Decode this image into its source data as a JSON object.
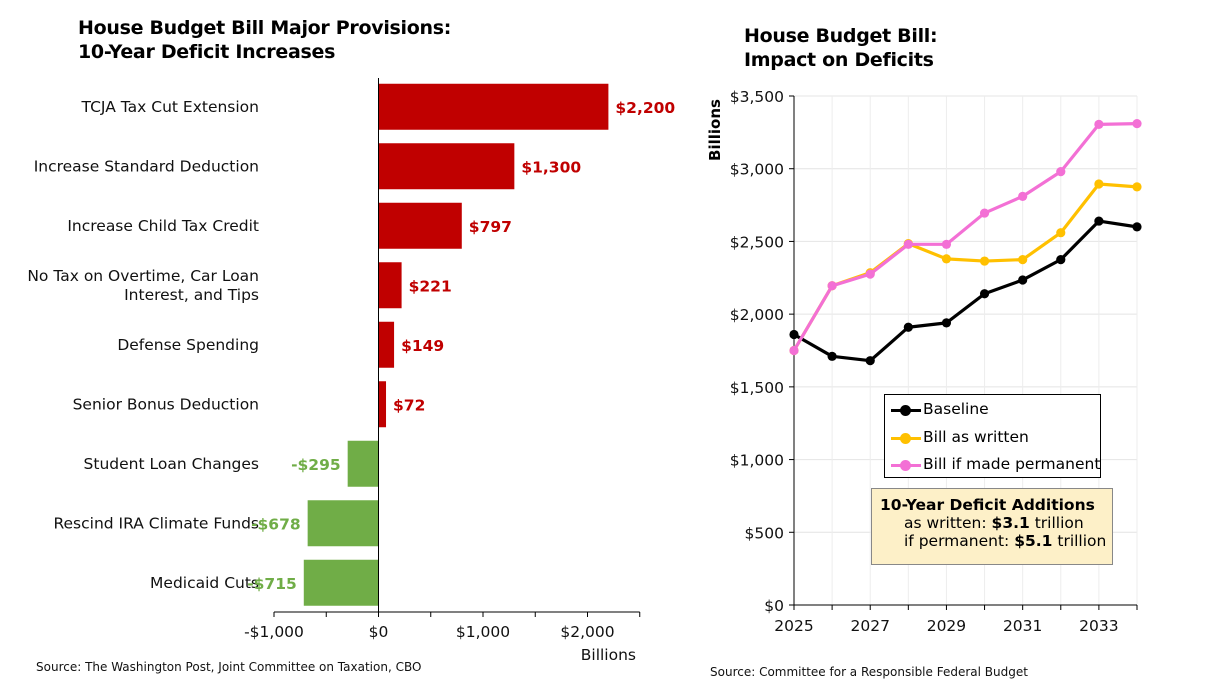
{
  "left": {
    "title_line1": "House Budget Bill Major Provisions:",
    "title_line2": "10-Year Deficit Increases",
    "source": "Source: The Washington Post, Joint Committee on Taxation, CBO"
  },
  "right": {
    "title_line1": "House Budget Bill:",
    "title_line2": "Impact on Deficits",
    "source": "Source: Committee for a Responsible Federal Budget",
    "note": {
      "heading": "10-Year Deficit Additions",
      "line1_prefix": "as written: ",
      "line1_value": "$3.1",
      "line1_suffix": " trillion",
      "line2_prefix": "if permanent: ",
      "line2_value": "$5.1",
      "line2_suffix": " trillion"
    }
  },
  "colors": {
    "increase": "#c00000",
    "decrease": "#70ad47",
    "baseline": "#000000",
    "as_written": "#ffc000",
    "permanent": "#f370d5"
  },
  "chart_data": [
    {
      "type": "bar",
      "orientation": "horizontal",
      "title": "House Budget Bill Major Provisions: 10-Year Deficit Increases",
      "xlabel": "Billions",
      "xlim": [
        -1000,
        2500
      ],
      "xticks": [
        -1000,
        0,
        1000,
        2000
      ],
      "xtick_labels": [
        "-$1,000",
        "$0",
        "$1,000",
        "$2,000"
      ],
      "categories": [
        {
          "label": [
            "TCJA Tax Cut Extension"
          ],
          "value": 2200,
          "value_label": "$2,200"
        },
        {
          "label": [
            "Increase Standard Deduction"
          ],
          "value": 1300,
          "value_label": "$1,300"
        },
        {
          "label": [
            "Increase Child Tax Credit"
          ],
          "value": 797,
          "value_label": "$797"
        },
        {
          "label": [
            "No Tax on Overtime, Car Loan",
            "Interest, and Tips"
          ],
          "value": 221,
          "value_label": "$221"
        },
        {
          "label": [
            "Defense Spending"
          ],
          "value": 149,
          "value_label": "$149"
        },
        {
          "label": [
            "Senior Bonus Deduction"
          ],
          "value": 72,
          "value_label": "$72"
        },
        {
          "label": [
            "Student Loan Changes"
          ],
          "value": -295,
          "value_label": "-$295"
        },
        {
          "label": [
            "Rescind IRA Climate Funds"
          ],
          "value": -678,
          "value_label": "-$678"
        },
        {
          "label": [
            "Medicaid Cuts"
          ],
          "value": -715,
          "value_label": "-$715"
        }
      ]
    },
    {
      "type": "line",
      "title": "House Budget Bill: Impact on Deficits",
      "ylabel": "Billions",
      "xlim": [
        2025,
        2034
      ],
      "ylim": [
        0,
        3500
      ],
      "xticks": [
        2025,
        2027,
        2029,
        2031,
        2033
      ],
      "yticks": [
        0,
        500,
        1000,
        1500,
        2000,
        2500,
        3000,
        3500
      ],
      "ytick_labels": [
        "$0",
        "$500",
        "$1,000",
        "$1,500",
        "$2,000",
        "$2,500",
        "$3,000",
        "$3,500"
      ],
      "grid": true,
      "legend": "center-right",
      "x": [
        2025,
        2026,
        2027,
        2028,
        2029,
        2030,
        2031,
        2032,
        2033,
        2034
      ],
      "series": [
        {
          "name": "Baseline",
          "color": "#000000",
          "values": [
            1860,
            1710,
            1680,
            1910,
            1940,
            2140,
            2235,
            2375,
            2640,
            2600
          ]
        },
        {
          "name": "Bill as written",
          "color": "#ffc000",
          "values": [
            1750,
            2195,
            2285,
            2485,
            2380,
            2365,
            2375,
            2560,
            2895,
            2875
          ]
        },
        {
          "name": "Bill if made permanent",
          "color": "#f370d5",
          "values": [
            1750,
            2195,
            2275,
            2480,
            2480,
            2695,
            2810,
            2980,
            3305,
            3310
          ]
        }
      ]
    }
  ]
}
